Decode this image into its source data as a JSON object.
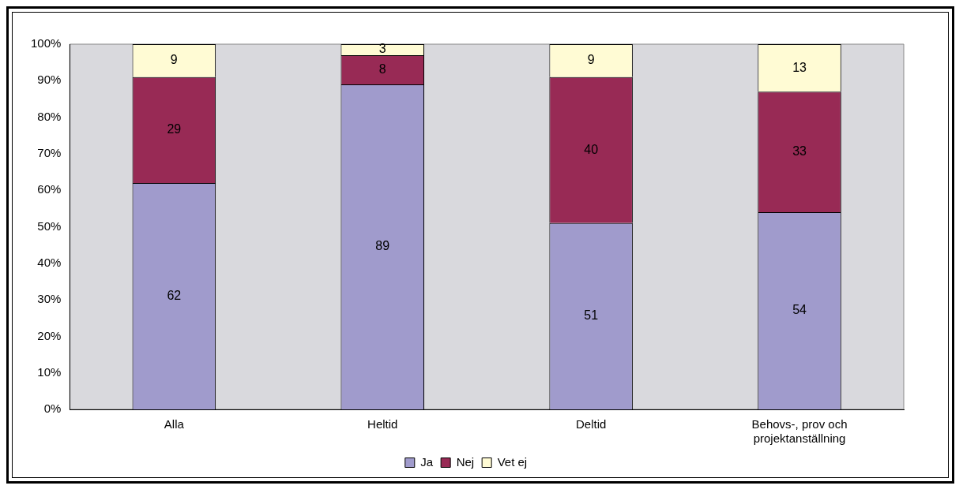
{
  "chart_data": {
    "type": "bar",
    "stacked": true,
    "data_labels": true,
    "grid": false,
    "legend": "bottom",
    "categories": [
      "Alla",
      "Heltid",
      "Deltid",
      "Behovs-, prov och projektanställning"
    ],
    "series": [
      {
        "name": "Ja",
        "color": "#a09bcc",
        "values": [
          62,
          89,
          51,
          54
        ]
      },
      {
        "name": "Nej",
        "color": "#982a55",
        "values": [
          29,
          8,
          40,
          33
        ]
      },
      {
        "name": "Vet ej",
        "color": "#fffbd4",
        "values": [
          9,
          3,
          9,
          13
        ]
      }
    ],
    "ylim": [
      0,
      100
    ],
    "yticks": [
      {
        "value": 0,
        "label": "0%"
      },
      {
        "value": 10,
        "label": "10%"
      },
      {
        "value": 20,
        "label": "20%"
      },
      {
        "value": 30,
        "label": "30%"
      },
      {
        "value": 40,
        "label": "40%"
      },
      {
        "value": 50,
        "label": "50%"
      },
      {
        "value": 60,
        "label": "60%"
      },
      {
        "value": 70,
        "label": "70%"
      },
      {
        "value": 80,
        "label": "80%"
      },
      {
        "value": 90,
        "label": "90%"
      },
      {
        "value": 100,
        "label": "100%"
      }
    ]
  }
}
